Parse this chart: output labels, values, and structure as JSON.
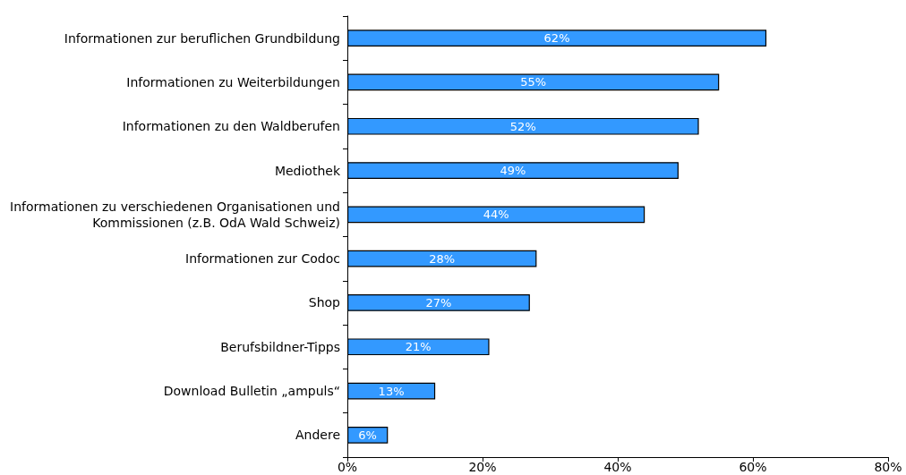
{
  "chart_data": {
    "type": "bar",
    "orientation": "horizontal",
    "categories": [
      "Informationen zur beruflichen Grundbildung",
      "Informationen zu Weiterbildungen",
      "Informationen zu den Waldberufen",
      "Mediothek",
      "Informationen zu verschiedenen Organisationen und Kommissionen (z.B. OdA Wald Schweiz)",
      "Informationen zur Codoc",
      "Shop",
      "Berufsbildner-Tipps",
      "Download Bulletin „ampuls“",
      "Andere"
    ],
    "values": [
      62,
      55,
      52,
      49,
      44,
      28,
      27,
      21,
      13,
      6
    ],
    "color": "#3399ff",
    "xlim": [
      0,
      80
    ],
    "xticks": [
      {
        "value": 0,
        "label": "0%"
      },
      {
        "value": 20,
        "label": "20%"
      },
      {
        "value": 40,
        "label": "40%"
      },
      {
        "value": 60,
        "label": "60%"
      },
      {
        "value": 80,
        "label": "80%"
      }
    ],
    "data_labels": true,
    "value_labels": [
      "62%",
      "55%",
      "52%",
      "49%",
      "44%",
      "28%",
      "27%",
      "21%",
      "13%",
      "6%"
    ]
  }
}
